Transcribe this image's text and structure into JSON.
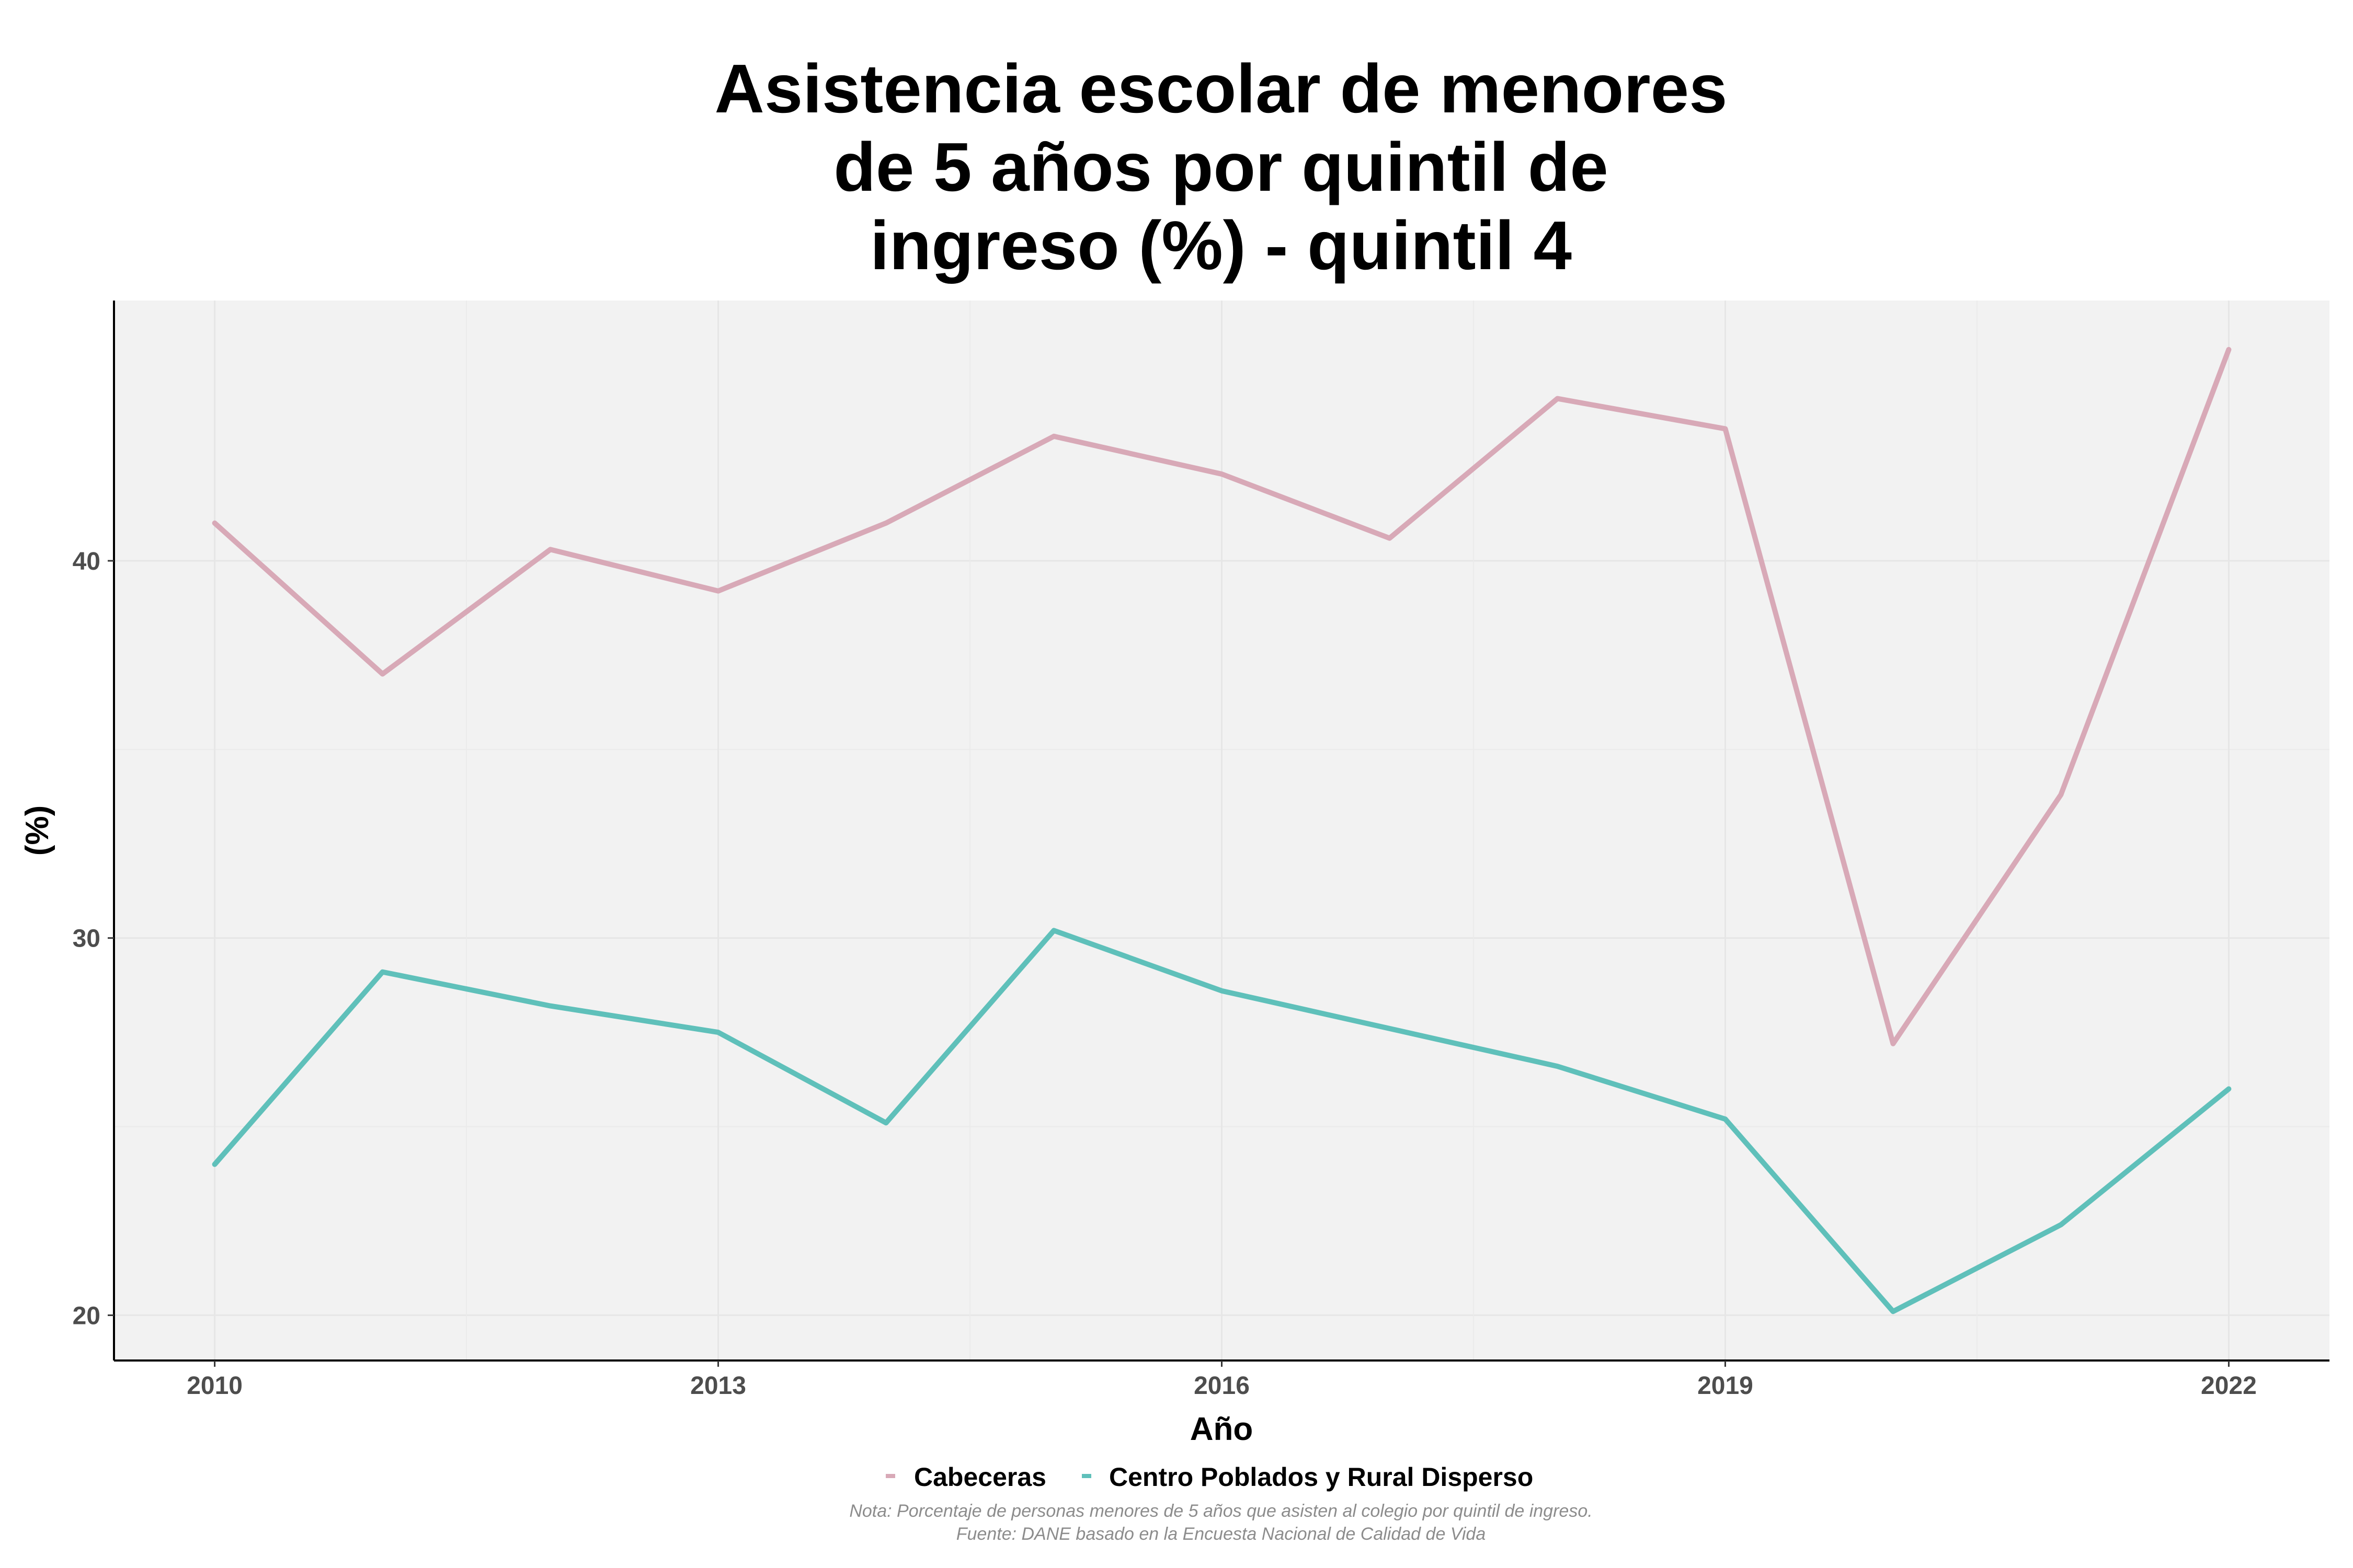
{
  "chart_data": {
    "type": "line",
    "title": [
      "Asistencia escolar de menores",
      "de 5 años por quintil de",
      "ingreso (%) - quintil 4"
    ],
    "xlabel": "Año",
    "ylabel": "(%)",
    "x": [
      2010,
      2011,
      2012,
      2013,
      2014,
      2015,
      2016,
      2017,
      2018,
      2019,
      2020,
      2021,
      2022
    ],
    "xticks": [
      2010,
      2013,
      2016,
      2019,
      2022
    ],
    "yticks": [
      20,
      30,
      40
    ],
    "xlim": [
      2009.4,
      2022.6
    ],
    "ylim": [
      18.8,
      46.9
    ],
    "grid": true,
    "legend_position": "bottom",
    "series": [
      {
        "name": "Cabeceras",
        "color": "#d8a9b7",
        "values": [
          41.0,
          37.0,
          40.3,
          39.2,
          41.0,
          43.3,
          42.3,
          40.6,
          44.3,
          43.5,
          27.2,
          33.8,
          45.6
        ]
      },
      {
        "name": "Centro Poblados y Rural Disperso",
        "color": "#5fc0ba",
        "values": [
          24.0,
          29.1,
          28.2,
          27.5,
          25.1,
          30.2,
          28.6,
          27.6,
          26.6,
          25.2,
          20.1,
          22.4,
          26.0
        ]
      }
    ],
    "note": "Nota: Porcentaje de personas menores de 5 años que asisten al colegio por quintil de ingreso.",
    "source": "Fuente: DANE basado en la Encuesta Nacional de Calidad de Vida"
  }
}
